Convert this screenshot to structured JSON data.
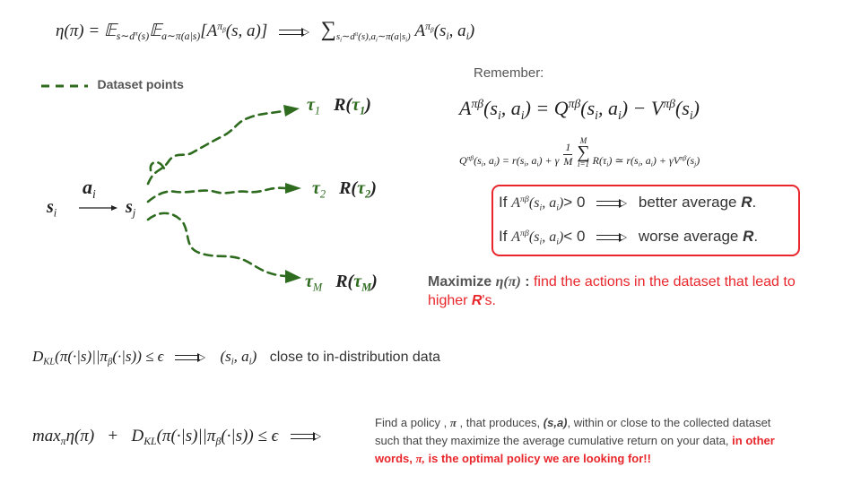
{
  "top_formula": {
    "lhs": "η(π) = 𝔼",
    "lhs_sub1": "s∼d",
    "lhs_sup1": "π",
    "lhs_sub1b": "(s)",
    "lhs_e2": "𝔼",
    "lhs_sub2": "a∼π(a|s)",
    "lhs_bracket": "[A",
    "lhs_sup_a": "π",
    "lhs_sup_beta": "β",
    "lhs_tail": "(s, a)]",
    "rhs_sum": "∑",
    "rhs_sub": "s",
    "rhs_sub_i": "i",
    "rhs_sub_rest": "∼d",
    "rhs_sub_pi": "π",
    "rhs_sub_rest2": "(s),a",
    "rhs_sub_i2": "i",
    "rhs_sub_rest3": "∼π(a|s",
    "rhs_sub_i3": "i",
    "rhs_sub_close": ")",
    "rhs_A": "A",
    "rhs_sup": "π",
    "rhs_sup_beta": "β",
    "rhs_args": "(s",
    "rhs_i1": "i",
    "rhs_comma": ", a",
    "rhs_i2": "i",
    "rhs_close": ")"
  },
  "legend": {
    "label": "Dataset points",
    "color": "#2e6b1f"
  },
  "diagram": {
    "s_i": "s",
    "s_i_sub": "i",
    "a_i": "a",
    "a_i_sub": "i",
    "s_j": "s",
    "s_j_sub": "j",
    "traj1": "τ",
    "traj1_sub": "1",
    "ret1": "R(",
    "ret1_tau": "τ",
    "ret1_sub": "1",
    "ret1_close": ")",
    "traj2": "τ",
    "traj2_sub": "2",
    "ret2": "R(",
    "ret2_tau": "τ",
    "ret2_sub": "2",
    "ret2_close": ")",
    "trajM": "τ",
    "trajM_sub": "M",
    "retM": "R(",
    "retM_tau": "τ",
    "retM_sub": "M",
    "retM_close": ")"
  },
  "remember": {
    "label": "Remember:",
    "adv": {
      "A": "A",
      "sup": "πβ",
      "args": "(s",
      "i": "i",
      "comma": ", a",
      "i2": "i",
      "eq": ") = Q",
      "qsup": "πβ",
      "qargs": "(s",
      "qi": "i",
      "qcomma": ", a",
      "qi2": "i",
      "minus": ") − V",
      "vsup": "πβ",
      "vargs": "(s",
      "vi": "i",
      "vclose": ")"
    },
    "q_eq": {
      "lhs": "Q",
      "lhs_sup": "πβ",
      "lhs_args": "(s",
      "lhs_i": "i",
      "lhs_comma": ", a",
      "lhs_i2": "i",
      "eq": ") = r(s",
      "r_i": "i",
      "r_comma": ", a",
      "r_i2": "i",
      "plus": ") + γ",
      "frac_num": "1",
      "frac_den": "M",
      "sum_top": "M",
      "sum": "∑",
      "sum_bot": "i=1",
      "R": "R(τ",
      "R_i": "i",
      "approx": ") ≃ r(s",
      "a_i": "i",
      "a_comma": ", a",
      "a_i2": "i",
      "gamma": ") + γV",
      "v_sup": "πβ",
      "v_args": "(s",
      "v_j": "j",
      "v_close": ")"
    }
  },
  "box": {
    "border_color": "#e8262b",
    "line1_if": "If",
    "line1_cmp": "> 0",
    "line1_text": "better average ",
    "line1_R": "R",
    "line1_dot": ".",
    "line2_if": "If",
    "line2_cmp": "< 0",
    "line2_text": "worse average ",
    "line2_R": "R",
    "line2_dot": ".",
    "A": "A",
    "A_sup": "πβ",
    "A_args": "(s",
    "A_i": "i",
    "A_comma": ", a",
    "A_i2": "i",
    "A_close": ")"
  },
  "maximize": {
    "bold": "Maximize ",
    "eta": "η(π)",
    "colon": " : ",
    "red1": "find the actions in the dataset that lead to",
    "red2a": "higher ",
    "red2R": "R",
    "red2b": "'s."
  },
  "kl_line": {
    "formula": "D",
    "sub": "KL",
    "rest": "(π(·|s)||π",
    "beta": "β",
    "rest2": "(·|s)) ≤ ϵ",
    "pair": "(s",
    "pair_i": "i",
    "pair_comma": ", a",
    "pair_i2": "i",
    "pair_close": ")",
    "text": "close to in-distribution data"
  },
  "final": {
    "max": "max",
    "max_sub": "π",
    "eta": "η(π)",
    "plus": "+",
    "D": "D",
    "D_sub": "KL",
    "rest": "(π(·|s)||π",
    "beta": "β",
    "rest2": "(·|s)) ≤ ϵ",
    "text1": "Find a policy , ",
    "text1_pi": "π",
    "text1b": " , that produces, ",
    "text1_sa": "(s,a)",
    "text1c": ", within or close to the collected dataset",
    "text2": "such that they maximize the average cumulative return on your data, ",
    "text2_red": "in other",
    "text3_red": "words, ",
    "text3_pi": "π,",
    "text3_red2": " is the optimal policy we are looking for!!"
  }
}
